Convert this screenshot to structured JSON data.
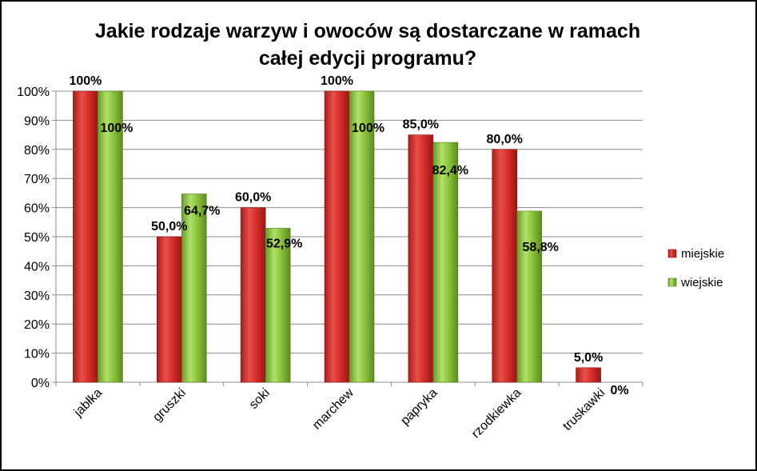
{
  "chart_data": {
    "type": "bar",
    "title_line1": "Jakie rodzaje warzyw i owoców są dostarczane w ramach",
    "title_line2": "całej edycji programu?",
    "xlabel": "",
    "ylabel": "",
    "ylim": [
      0,
      100
    ],
    "y_ticks": [
      "0%",
      "10%",
      "20%",
      "30%",
      "40%",
      "50%",
      "60%",
      "70%",
      "80%",
      "90%",
      "100%"
    ],
    "grid": true,
    "legend_position": "right",
    "categories": [
      "jabłka",
      "gruszki",
      "soki",
      "marchew",
      "papryka",
      "rzodkiewka",
      "truskawki"
    ],
    "series": [
      {
        "name": "miejskie",
        "color": "#d9302c",
        "values": [
          100,
          50,
          60,
          100,
          85,
          80,
          5
        ],
        "labels": [
          "100%",
          "50,0%",
          "60,0%",
          "100%",
          "85,0%",
          "80,0%",
          "5,0%"
        ]
      },
      {
        "name": "wiejskie",
        "color": "#8dc63f",
        "values": [
          100,
          64.7,
          52.9,
          100,
          82.4,
          58.8,
          0
        ],
        "labels": [
          "100%",
          "64,7%",
          "52,9%",
          "100%",
          "82,4%",
          "58,8%",
          "0%"
        ]
      }
    ]
  }
}
